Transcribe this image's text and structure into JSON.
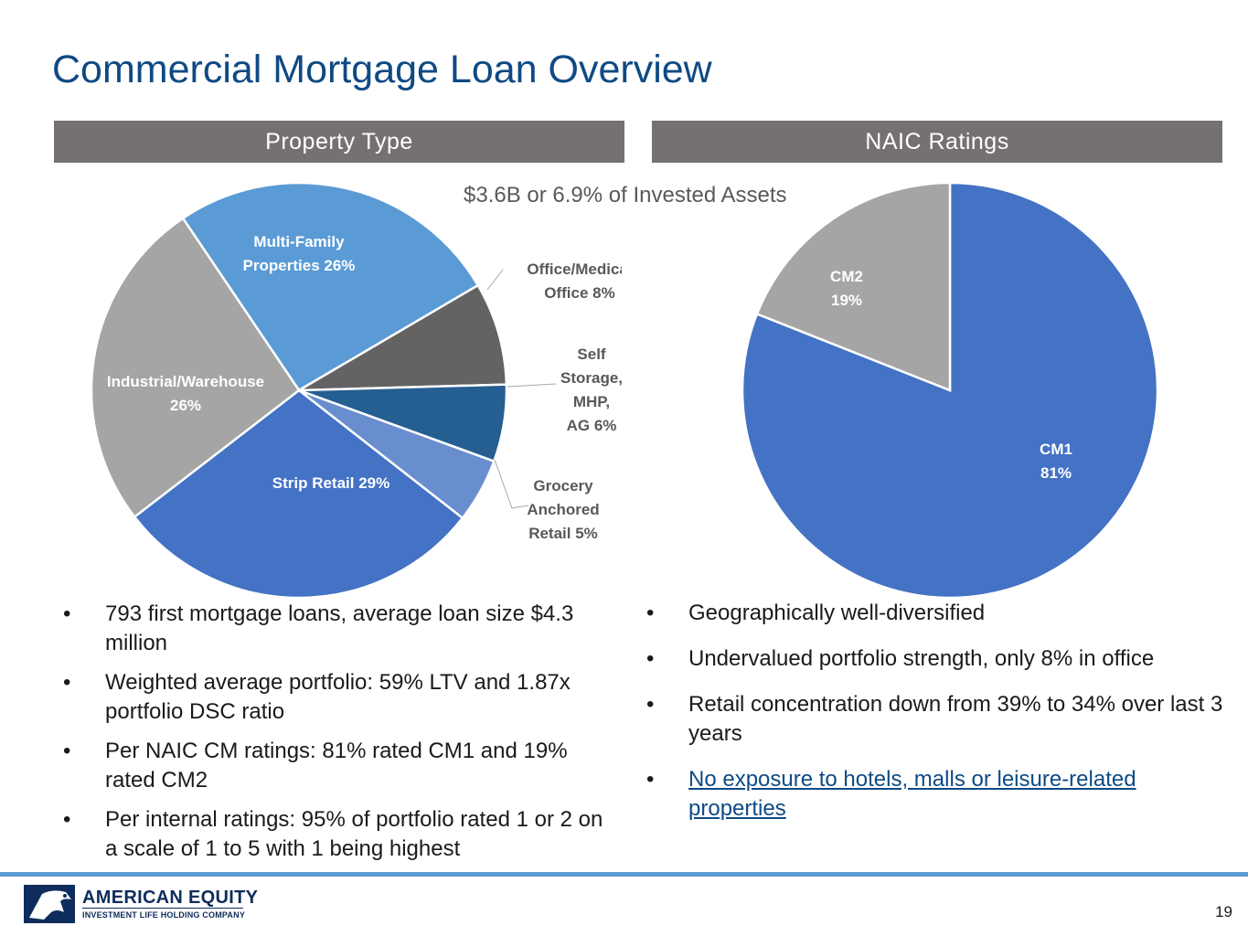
{
  "page": {
    "title": "Commercial Mortgage Loan Overview",
    "subtitle": "$3.6B or 6.9% of Invested Assets",
    "page_number": "19"
  },
  "headers": {
    "left": "Property Type",
    "right": "NAIC Ratings"
  },
  "chart_data": [
    {
      "type": "pie",
      "name": "Property Type",
      "slices": [
        {
          "lines": [
            "Multi-Family",
            "Properties 26%"
          ],
          "value": 26,
          "color": "#5b9bd5",
          "label_color": "#ffffff"
        },
        {
          "lines": [
            "Office/Medical",
            "Office 8%"
          ],
          "value": 8,
          "color": "#636363",
          "label_color": "#595959"
        },
        {
          "lines": [
            "Self",
            "Storage,",
            "MHP,",
            "AG 6%"
          ],
          "value": 6,
          "color": "#255e91",
          "label_color": "#595959"
        },
        {
          "lines": [
            "Grocery",
            "Anchored",
            "Retail 5%"
          ],
          "value": 5,
          "color": "#698ed0",
          "label_color": "#595959"
        },
        {
          "lines": [
            "Strip Retail 29%"
          ],
          "value": 29,
          "color": "#4472c4",
          "label_color": "#ffffff"
        },
        {
          "lines": [
            "Industrial/Warehouse",
            "26%"
          ],
          "value": 26,
          "color": "#a5a5a5",
          "label_color": "#ffffff"
        }
      ]
    },
    {
      "type": "pie",
      "name": "NAIC Ratings",
      "slices": [
        {
          "lines": [
            "CM1",
            "81%"
          ],
          "value": 81,
          "color": "#4472c4",
          "label_color": "#ffffff"
        },
        {
          "lines": [
            "CM2",
            "19%"
          ],
          "value": 19,
          "color": "#a5a5a5",
          "label_color": "#ffffff"
        }
      ]
    }
  ],
  "bullets_left": [
    "793 first mortgage loans, average loan size $4.3 million",
    "Weighted average portfolio: 59% LTV and 1.87x portfolio DSC ratio",
    "Per NAIC CM ratings: 81% rated CM1 and 19% rated CM2",
    "Per internal ratings: 95% of portfolio rated 1 or 2 on a scale of 1 to 5 with 1 being highest"
  ],
  "bullets_right": [
    "Geographically well-diversified",
    "Undervalued portfolio strength, only 8% in office",
    "Retail concentration down from 39% to 34% over last 3 years",
    "No exposure to hotels, malls or leisure-related properties"
  ],
  "logo": {
    "name": "AMERICAN EQUITY",
    "tagline": "INVESTMENT LIFE HOLDING COMPANY"
  }
}
